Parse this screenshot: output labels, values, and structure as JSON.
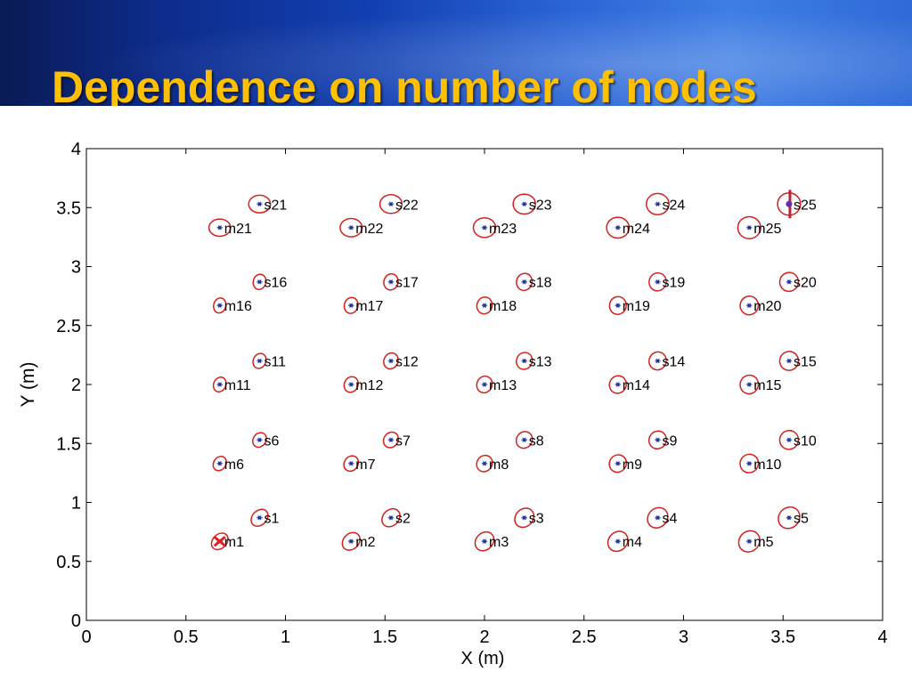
{
  "slide": {
    "title": "Dependence on number of nodes"
  },
  "colors": {
    "banner_dark": "#0a1a55",
    "banner_light": "#3f7ee4",
    "title": "#ffc000",
    "ellipse": "#d42020",
    "node_dot": "#2030a0",
    "marker": "#e02020"
  },
  "chart_data": {
    "type": "scatter",
    "title": "",
    "xlabel": "X (m)",
    "ylabel": "Y (m)",
    "xlim": [
      0,
      4
    ],
    "ylim": [
      0,
      4
    ],
    "xticks": [
      "0",
      "0.5",
      "1",
      "1.5",
      "2",
      "2.5",
      "3",
      "3.5",
      "4"
    ],
    "yticks": [
      "0",
      "0.5",
      "1",
      "1.5",
      "2",
      "2.5",
      "3",
      "3.5",
      "4"
    ],
    "grid": false,
    "beacons": [
      {
        "label": "m1",
        "x": 0.67,
        "y": 0.67
      },
      {
        "label": "m2",
        "x": 1.33,
        "y": 0.67
      },
      {
        "label": "m3",
        "x": 2.0,
        "y": 0.67
      },
      {
        "label": "m4",
        "x": 2.67,
        "y": 0.67
      },
      {
        "label": "m5",
        "x": 3.33,
        "y": 0.67
      },
      {
        "label": "m6",
        "x": 0.67,
        "y": 1.33
      },
      {
        "label": "m7",
        "x": 1.33,
        "y": 1.33
      },
      {
        "label": "m8",
        "x": 2.0,
        "y": 1.33
      },
      {
        "label": "m9",
        "x": 2.67,
        "y": 1.33
      },
      {
        "label": "m10",
        "x": 3.33,
        "y": 1.33
      },
      {
        "label": "m11",
        "x": 0.67,
        "y": 2.0
      },
      {
        "label": "m12",
        "x": 1.33,
        "y": 2.0
      },
      {
        "label": "m13",
        "x": 2.0,
        "y": 2.0
      },
      {
        "label": "m14",
        "x": 2.67,
        "y": 2.0
      },
      {
        "label": "m15",
        "x": 3.33,
        "y": 2.0
      },
      {
        "label": "m16",
        "x": 0.67,
        "y": 2.67
      },
      {
        "label": "m17",
        "x": 1.33,
        "y": 2.67
      },
      {
        "label": "m18",
        "x": 2.0,
        "y": 2.67
      },
      {
        "label": "m19",
        "x": 2.67,
        "y": 2.67
      },
      {
        "label": "m20",
        "x": 3.33,
        "y": 2.67
      },
      {
        "label": "m21",
        "x": 0.67,
        "y": 3.33
      },
      {
        "label": "m22",
        "x": 1.33,
        "y": 3.33
      },
      {
        "label": "m23",
        "x": 2.0,
        "y": 3.33
      },
      {
        "label": "m24",
        "x": 2.67,
        "y": 3.33
      },
      {
        "label": "m25",
        "x": 3.33,
        "y": 3.33
      }
    ],
    "sensors": [
      {
        "label": "s1",
        "x": 0.87,
        "y": 0.87
      },
      {
        "label": "s2",
        "x": 1.53,
        "y": 0.87
      },
      {
        "label": "s3",
        "x": 2.2,
        "y": 0.87
      },
      {
        "label": "s4",
        "x": 2.87,
        "y": 0.87
      },
      {
        "label": "s5",
        "x": 3.53,
        "y": 0.87
      },
      {
        "label": "s6",
        "x": 0.87,
        "y": 1.53
      },
      {
        "label": "s7",
        "x": 1.53,
        "y": 1.53
      },
      {
        "label": "s8",
        "x": 2.2,
        "y": 1.53
      },
      {
        "label": "s9",
        "x": 2.87,
        "y": 1.53
      },
      {
        "label": "s10",
        "x": 3.53,
        "y": 1.53
      },
      {
        "label": "s11",
        "x": 0.87,
        "y": 2.2
      },
      {
        "label": "s12",
        "x": 1.53,
        "y": 2.2
      },
      {
        "label": "s13",
        "x": 2.2,
        "y": 2.2
      },
      {
        "label": "s14",
        "x": 2.87,
        "y": 2.2
      },
      {
        "label": "s15",
        "x": 3.53,
        "y": 2.2
      },
      {
        "label": "s16",
        "x": 0.87,
        "y": 2.87
      },
      {
        "label": "s17",
        "x": 1.53,
        "y": 2.87
      },
      {
        "label": "s18",
        "x": 2.2,
        "y": 2.87
      },
      {
        "label": "s19",
        "x": 2.87,
        "y": 2.87
      },
      {
        "label": "s20",
        "x": 3.53,
        "y": 2.87
      },
      {
        "label": "s21",
        "x": 0.87,
        "y": 3.53
      },
      {
        "label": "s22",
        "x": 1.53,
        "y": 3.53
      },
      {
        "label": "s23",
        "x": 2.2,
        "y": 3.53
      },
      {
        "label": "s24",
        "x": 2.87,
        "y": 3.53
      },
      {
        "label": "s25",
        "x": 3.53,
        "y": 3.53
      }
    ],
    "anchor_markers": [
      {
        "node": "m1",
        "shape": "x"
      },
      {
        "node": "s25",
        "shape": "vertical-bar"
      }
    ]
  }
}
